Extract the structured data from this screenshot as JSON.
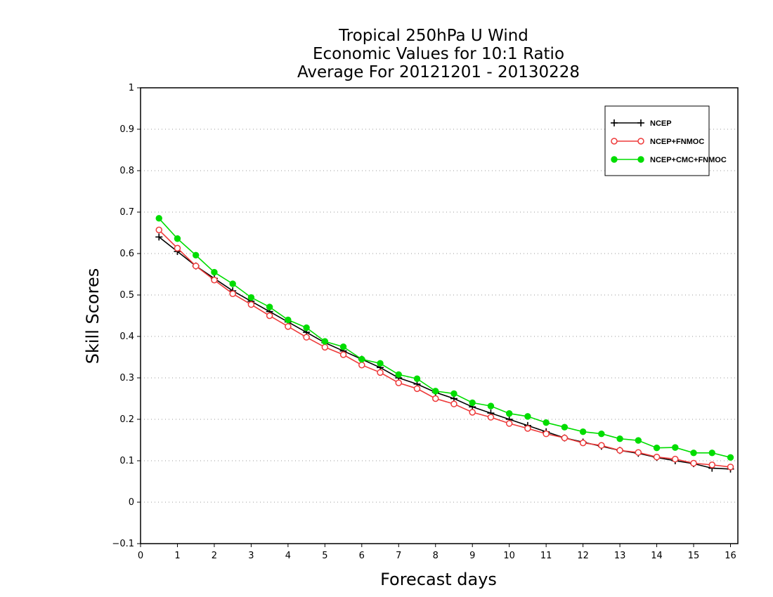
{
  "chart_data": {
    "type": "line",
    "title": [
      "Tropical 250hPa U Wind",
      "Economic Values for 10:1 Ratio",
      "Average For 20121201 - 20130228"
    ],
    "xlabel": "Forecast days",
    "ylabel": "Skill Scores",
    "xlim": [
      0,
      16.2
    ],
    "ylim": [
      -0.1,
      1
    ],
    "xticks": [
      0,
      1,
      2,
      3,
      4,
      5,
      6,
      7,
      8,
      9,
      10,
      11,
      12,
      13,
      14,
      15,
      16
    ],
    "yticks": [
      -0.1,
      0,
      0.1,
      0.2,
      0.3,
      0.4,
      0.5,
      0.6,
      0.7,
      0.8,
      0.9,
      1
    ],
    "grid": true,
    "legend_position": "top-right",
    "x": [
      0.5,
      1.0,
      1.5,
      2.0,
      2.5,
      3.0,
      3.5,
      4.0,
      4.5,
      5.0,
      5.5,
      6.0,
      6.5,
      7.0,
      7.5,
      8.0,
      8.5,
      9.0,
      9.5,
      10.0,
      10.5,
      11.0,
      11.5,
      12.0,
      12.5,
      13.0,
      13.5,
      14.0,
      14.5,
      15.0,
      15.5,
      16.0
    ],
    "series": [
      {
        "name": "NCEP",
        "color": "#000000",
        "marker": "plus",
        "values": [
          0.64,
          0.605,
          0.57,
          0.54,
          0.51,
          0.485,
          0.46,
          0.435,
          0.41,
          0.385,
          0.365,
          0.345,
          0.325,
          0.3,
          0.285,
          0.265,
          0.25,
          0.23,
          0.215,
          0.2,
          0.185,
          0.17,
          0.155,
          0.145,
          0.135,
          0.125,
          0.118,
          0.108,
          0.1,
          0.093,
          0.082,
          0.08
        ]
      },
      {
        "name": "NCEP+FNMOC",
        "color": "#ee3a3a",
        "marker": "open-circle",
        "values": [
          0.657,
          0.613,
          0.57,
          0.536,
          0.503,
          0.477,
          0.45,
          0.424,
          0.398,
          0.374,
          0.356,
          0.331,
          0.313,
          0.288,
          0.274,
          0.25,
          0.237,
          0.217,
          0.205,
          0.19,
          0.178,
          0.165,
          0.155,
          0.143,
          0.137,
          0.125,
          0.12,
          0.109,
          0.104,
          0.094,
          0.09,
          0.085
        ]
      },
      {
        "name": "NCEP+CMC+FNMOC",
        "color": "#00dd00",
        "marker": "filled-circle",
        "values": [
          0.685,
          0.636,
          0.596,
          0.555,
          0.527,
          0.494,
          0.471,
          0.44,
          0.421,
          0.388,
          0.375,
          0.345,
          0.335,
          0.308,
          0.298,
          0.268,
          0.262,
          0.24,
          0.232,
          0.214,
          0.207,
          0.192,
          0.181,
          0.17,
          0.165,
          0.153,
          0.149,
          0.131,
          0.132,
          0.119,
          0.119,
          0.108
        ]
      }
    ]
  }
}
